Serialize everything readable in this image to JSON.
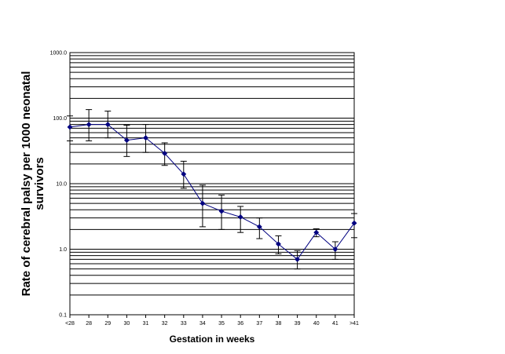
{
  "chart_data": {
    "type": "line",
    "title": "",
    "xlabel": "Gestation in weeks",
    "ylabel_line1": "Rate of cerebral palsy per 1000 neonatal",
    "ylabel_line2": "survivors",
    "yscale": "log",
    "ylim": [
      0.1,
      1000
    ],
    "ytick_labels": [
      "0.1",
      "1.0",
      "10.0",
      "100.0",
      "1000.0"
    ],
    "grid": "horizontal major and minor lines",
    "legend": "none",
    "categories": [
      "<28",
      "28",
      "29",
      "30",
      "31",
      "32",
      "33",
      "34",
      "35",
      "36",
      "37",
      "38",
      "39",
      "40",
      "41",
      ">41"
    ],
    "series": [
      {
        "values": [
          73,
          80,
          80,
          46,
          50,
          29,
          14,
          5.0,
          3.8,
          3.1,
          2.2,
          1.2,
          0.7,
          1.8,
          1.0,
          2.5
        ],
        "error_lower": [
          45,
          45,
          50,
          26,
          30,
          19,
          8.5,
          2.2,
          2.0,
          1.8,
          1.45,
          0.85,
          0.5,
          1.55,
          0.7,
          1.5
        ],
        "error_upper": [
          108,
          135,
          128,
          78,
          80,
          42,
          22,
          9.5,
          6.7,
          4.5,
          3.0,
          1.6,
          0.95,
          2.05,
          1.3,
          3.5
        ]
      }
    ],
    "colors": {
      "series": "#000080",
      "grid": "#000000",
      "error_bars": "#000000"
    }
  }
}
